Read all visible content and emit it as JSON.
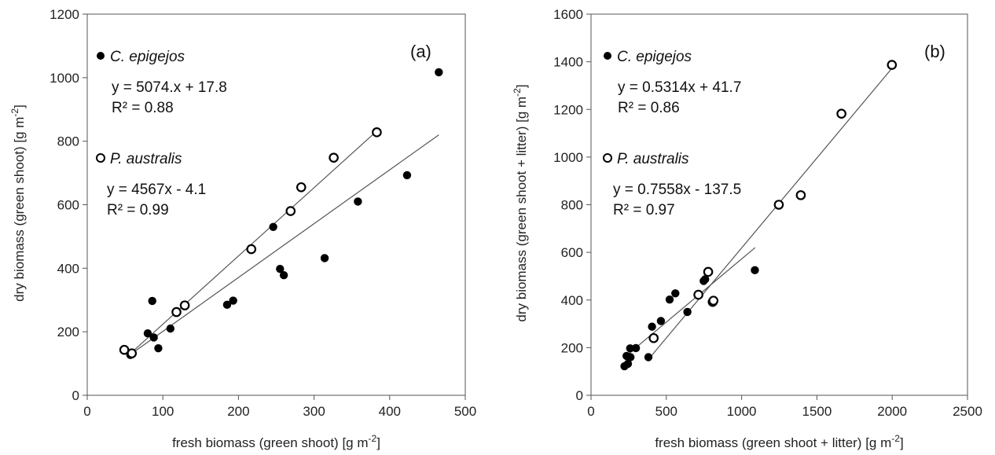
{
  "chart_data": [
    {
      "type": "scatter",
      "panel_label": "(a)",
      "xlabel": "fresh biomass (green shoot) [g m",
      "xlabel_sup": "-2",
      "xlabel_end": "]",
      "ylabel": "dry biomass (green shoot) [g m",
      "ylabel_sup": "-2",
      "ylabel_end": "]",
      "xlim": [
        0,
        500
      ],
      "ylim": [
        0,
        1200
      ],
      "xticks": [
        0,
        100,
        200,
        300,
        400,
        500
      ],
      "yticks": [
        0,
        200,
        400,
        600,
        800,
        1000,
        1200
      ],
      "series": [
        {
          "name": "C. epigejos",
          "marker": "filled",
          "points": [
            [
              57,
              127
            ],
            [
              80,
              195
            ],
            [
              86,
              297
            ],
            [
              88,
              182
            ],
            [
              94,
              148
            ],
            [
              110,
              210
            ],
            [
              185,
              285
            ],
            [
              193,
              298
            ],
            [
              246,
              530
            ],
            [
              255,
              398
            ],
            [
              260,
              378
            ],
            [
              314,
              432
            ],
            [
              358,
              610
            ],
            [
              423,
              693
            ],
            [
              465,
              1017
            ]
          ],
          "equation": "y = 5074.x  + 17.8",
          "r2": "R² = 0.88",
          "fit": [
            [
              55,
              125
            ],
            [
              465,
              820
            ]
          ]
        },
        {
          "name": "P. australis",
          "marker": "open",
          "points": [
            [
              49,
              143
            ],
            [
              59,
              132
            ],
            [
              118,
              262
            ],
            [
              129,
              283
            ],
            [
              217,
              460
            ],
            [
              269,
              580
            ],
            [
              283,
              655
            ],
            [
              326,
              748
            ],
            [
              383,
              828
            ]
          ],
          "equation": "y = 4567x  - 4.1",
          "r2": "R² = 0.99",
          "fit": [
            [
              55,
              127
            ],
            [
              383,
              832
            ]
          ]
        }
      ]
    },
    {
      "type": "scatter",
      "panel_label": "(b)",
      "xlabel": "fresh biomass (green shoot + litter) [g m",
      "xlabel_sup": "-2",
      "xlabel_end": "]",
      "ylabel": "dry biomass (green shoot + litter) [g m",
      "ylabel_sup": "-2",
      "ylabel_end": "]",
      "xlim": [
        0,
        2500
      ],
      "ylim": [
        0,
        1600
      ],
      "xticks": [
        0,
        500,
        1000,
        1500,
        2000,
        2500
      ],
      "yticks": [
        0,
        200,
        400,
        600,
        800,
        1000,
        1200,
        1400,
        1600
      ],
      "series": [
        {
          "name": "C. epigejos",
          "marker": "filled",
          "points": [
            [
              222,
              122
            ],
            [
              236,
              165
            ],
            [
              245,
              132
            ],
            [
              260,
              197
            ],
            [
              262,
              160
            ],
            [
              298,
              198
            ],
            [
              381,
              160
            ],
            [
              405,
              288
            ],
            [
              464,
              312
            ],
            [
              522,
              402
            ],
            [
              560,
              428
            ],
            [
              640,
              350
            ],
            [
              748,
              480
            ],
            [
              758,
              487
            ],
            [
              1088,
              525
            ]
          ],
          "equation": "y = 0.5314x  + 41.7",
          "r2": "R² = 0.86",
          "fit": [
            [
              230,
              164
            ],
            [
              1090,
              620
            ]
          ]
        },
        {
          "name": "P. australis",
          "marker": "open",
          "points": [
            [
              416,
              240
            ],
            [
              713,
              422
            ],
            [
              778,
              518
            ],
            [
              808,
              392
            ],
            [
              813,
              397
            ],
            [
              1247,
              800
            ],
            [
              1393,
              840
            ],
            [
              1663,
              1182
            ],
            [
              1998,
              1387
            ]
          ],
          "equation": "y = 0.7558x  - 137.5",
          "r2": "R² = 0.97",
          "fit": [
            [
              400,
              165
            ],
            [
              2000,
              1374
            ]
          ]
        }
      ]
    }
  ]
}
